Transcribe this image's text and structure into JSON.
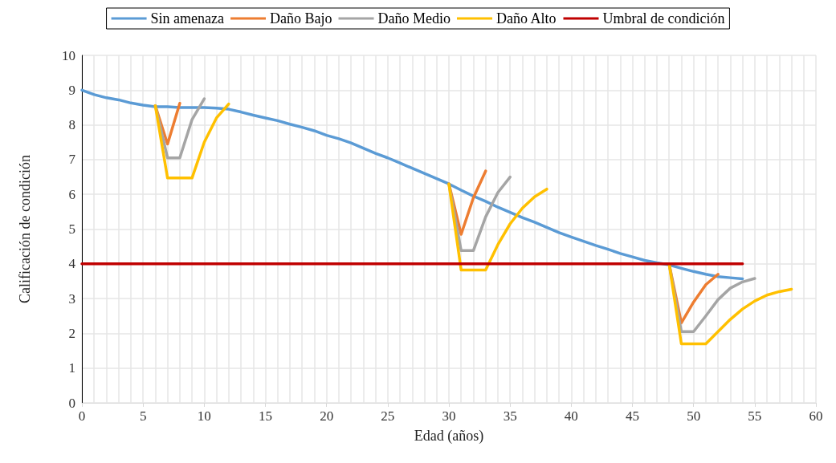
{
  "chart_data": {
    "type": "line",
    "xlabel": "Edad (años)",
    "ylabel": "Calificación de condición",
    "xlim": [
      0,
      60
    ],
    "xticks": [
      0,
      5,
      10,
      15,
      20,
      25,
      30,
      35,
      40,
      45,
      50,
      55,
      60
    ],
    "ylim": [
      0,
      10
    ],
    "yticks": [
      0,
      1,
      2,
      3,
      4,
      5,
      6,
      7,
      8,
      9,
      10
    ],
    "grid": true,
    "legend": "top",
    "marker": "none",
    "line_style": "solid",
    "series": [
      {
        "name": "Sin amenaza",
        "color": "#5b9bd5",
        "x": [
          0,
          1,
          2,
          3,
          4,
          5,
          6,
          7,
          8,
          9,
          10,
          11,
          12,
          13,
          14,
          15,
          16,
          17,
          18,
          19,
          20,
          21,
          22,
          23,
          24,
          25,
          26,
          27,
          28,
          29,
          30,
          31,
          32,
          33,
          34,
          35,
          36,
          37,
          38,
          39,
          40,
          41,
          42,
          43,
          44,
          45,
          46,
          47,
          48,
          49,
          50,
          51,
          52,
          53,
          54
        ],
        "values": [
          9.0,
          8.87,
          8.78,
          8.72,
          8.63,
          8.57,
          8.52,
          8.52,
          8.5,
          8.5,
          8.5,
          8.48,
          8.45,
          8.37,
          8.28,
          8.2,
          8.12,
          8.02,
          7.93,
          7.83,
          7.7,
          7.6,
          7.48,
          7.33,
          7.18,
          7.05,
          6.9,
          6.75,
          6.6,
          6.45,
          6.3,
          6.12,
          5.95,
          5.8,
          5.63,
          5.48,
          5.33,
          5.2,
          5.05,
          4.9,
          4.77,
          4.65,
          4.53,
          4.42,
          4.3,
          4.2,
          4.1,
          4.03,
          3.97,
          3.87,
          3.78,
          3.7,
          3.63,
          3.6,
          3.57
        ]
      },
      {
        "name": "Daño Bajo",
        "color": "#ed7d31",
        "x": [
          6,
          7,
          8,
          20,
          30,
          31,
          32,
          33,
          40,
          48,
          49,
          50,
          51,
          52
        ],
        "values": [
          8.55,
          7.45,
          8.62,
          null,
          6.3,
          4.85,
          5.9,
          6.67,
          null,
          4.0,
          2.3,
          2.9,
          3.4,
          3.7
        ]
      },
      {
        "name": "Daño Medio",
        "color": "#a5a5a5",
        "x": [
          6,
          7,
          8,
          9,
          10,
          20,
          30,
          31,
          32,
          33,
          34,
          35,
          40,
          48,
          49,
          50,
          51,
          52,
          53,
          54,
          55
        ],
        "values": [
          8.55,
          7.05,
          7.05,
          8.15,
          8.75,
          null,
          6.3,
          4.38,
          4.38,
          5.35,
          6.05,
          6.5,
          null,
          4.0,
          2.05,
          2.05,
          2.5,
          2.97,
          3.3,
          3.48,
          3.58
        ]
      },
      {
        "name": "Daño Alto",
        "color": "#ffc000",
        "x": [
          6,
          7,
          8,
          9,
          10,
          11,
          12,
          20,
          30,
          31,
          32,
          33,
          34,
          35,
          36,
          37,
          38,
          40,
          48,
          49,
          50,
          51,
          52,
          53,
          54,
          55,
          56,
          57,
          58
        ],
        "values": [
          8.55,
          6.47,
          6.47,
          6.47,
          7.5,
          8.2,
          8.6,
          null,
          6.3,
          3.82,
          3.82,
          3.82,
          4.55,
          5.15,
          5.6,
          5.93,
          6.15,
          null,
          4.0,
          1.7,
          1.7,
          1.7,
          2.05,
          2.4,
          2.7,
          2.93,
          3.1,
          3.2,
          3.27
        ]
      },
      {
        "name": "Umbral de condición",
        "color": "#c00000",
        "x": [
          0,
          54
        ],
        "values": [
          4,
          4
        ]
      }
    ]
  }
}
